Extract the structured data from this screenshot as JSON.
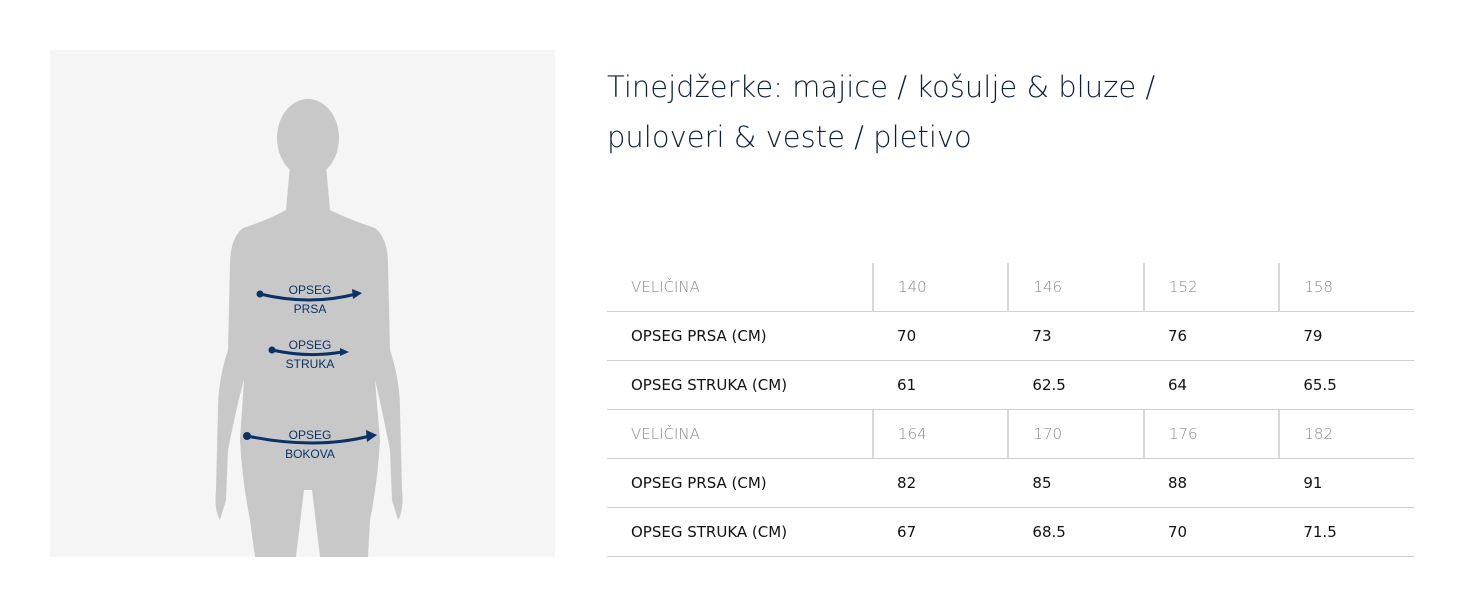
{
  "title": "Tinejdžerke: majice / košulje & bluze / puloveri & veste / pletivo",
  "figure": {
    "labels": [
      {
        "line1": "OPSEG",
        "line2": "PRSA"
      },
      {
        "line1": "OPSEG",
        "line2": "STRUKA"
      },
      {
        "line1": "OPSEG",
        "line2": "BOKOVA"
      }
    ],
    "colors": {
      "silhouette": "#c8c8c8",
      "arrow": "#0b3265",
      "background": "#f5f5f5"
    }
  },
  "table": {
    "rows": [
      {
        "label": "VELIČINA",
        "values": [
          "140",
          "146",
          "152",
          "158"
        ],
        "header": true
      },
      {
        "label": "OPSEG PRSA (CM)",
        "values": [
          "70",
          "73",
          "76",
          "79"
        ]
      },
      {
        "label": "OPSEG STRUKA (CM)",
        "values": [
          "61",
          "62.5",
          "64",
          "65.5"
        ]
      },
      {
        "label": "VELIČINA",
        "values": [
          "164",
          "170",
          "176",
          "182"
        ],
        "header": true
      },
      {
        "label": "OPSEG PRSA (CM)",
        "values": [
          "82",
          "85",
          "88",
          "91"
        ]
      },
      {
        "label": "OPSEG STRUKA (CM)",
        "values": [
          "67",
          "68.5",
          "70",
          "71.5"
        ]
      }
    ]
  }
}
